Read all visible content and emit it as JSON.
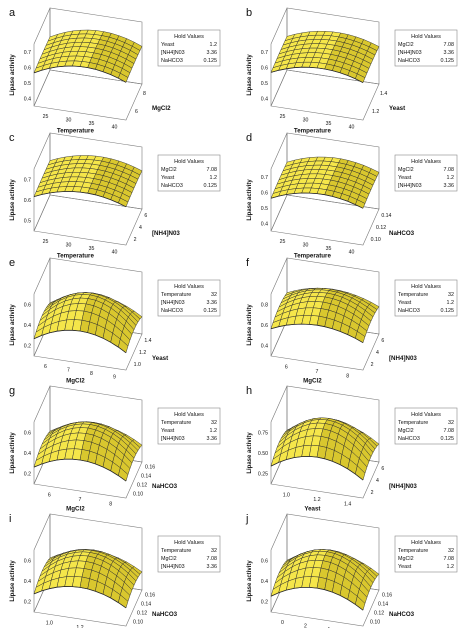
{
  "chart_data": [
    {
      "panel_letter": "a",
      "type": "surface3d",
      "xlabel": "Temperature",
      "ylabel": "MgCl2",
      "zlabel": "Lipase activity",
      "x_ticks": [
        "25",
        "30",
        "35",
        "40"
      ],
      "y_ticks": [
        "6",
        "8"
      ],
      "z_ticks": [
        "0.4",
        "0.5",
        "0.6",
        "0.7"
      ],
      "hold_title": "Hold Values",
      "hold": [
        [
          "Yeast",
          "1.2"
        ],
        [
          "[NH4]N03",
          "3.36"
        ],
        [
          "NaHCO3",
          "0.125"
        ]
      ],
      "surface": {
        "shape": "ridge_x",
        "peak": 0.72,
        "low": 0.42
      }
    },
    {
      "panel_letter": "b",
      "type": "surface3d",
      "xlabel": "Temperature",
      "ylabel": "Yeast",
      "zlabel": "Lipase activity",
      "x_ticks": [
        "25",
        "30",
        "35",
        "40"
      ],
      "y_ticks": [
        "1.2",
        "1.4"
      ],
      "z_ticks": [
        "0.4",
        "0.5",
        "0.6",
        "0.7"
      ],
      "hold_title": "Hold Values",
      "hold": [
        [
          "MgCl2",
          "7.08"
        ],
        [
          "[NH4]N03",
          "3.36"
        ],
        [
          "NaHCO3",
          "0.125"
        ]
      ],
      "surface": {
        "shape": "ridge_x",
        "peak": 0.7,
        "low": 0.44
      }
    },
    {
      "panel_letter": "c",
      "type": "surface3d",
      "xlabel": "Temperature",
      "ylabel": "[NH4]N03",
      "zlabel": "Lipase activity",
      "x_ticks": [
        "25",
        "30",
        "35",
        "40"
      ],
      "y_ticks": [
        "2",
        "4",
        "6"
      ],
      "z_ticks": [
        "0.5",
        "0.6",
        "0.7"
      ],
      "hold_title": "Hold Values",
      "hold": [
        [
          "MgCl2",
          "7.08"
        ],
        [
          "Yeast",
          "1.2"
        ],
        [
          "NaHCO3",
          "0.125"
        ]
      ],
      "surface": {
        "shape": "ridge_x",
        "peak": 0.71,
        "low": 0.45
      }
    },
    {
      "panel_letter": "d",
      "type": "surface3d",
      "xlabel": "Temperature",
      "ylabel": "NaHCO3",
      "zlabel": "Lipase activity",
      "x_ticks": [
        "25",
        "30",
        "35",
        "40"
      ],
      "y_ticks": [
        "0.10",
        "0.12",
        "0.14"
      ],
      "z_ticks": [
        "0.4",
        "0.5",
        "0.6",
        "0.7"
      ],
      "hold_title": "Hold Values",
      "hold": [
        [
          "MgCl2",
          "7.08"
        ],
        [
          "Yeast",
          "1.2"
        ],
        [
          "[NH4]N03",
          "3.36"
        ]
      ],
      "surface": {
        "shape": "ridge_x",
        "peak": 0.69,
        "low": 0.43
      }
    },
    {
      "panel_letter": "e",
      "type": "surface3d",
      "xlabel": "MgCl2",
      "ylabel": "Yeast",
      "zlabel": "Lipase activity",
      "x_ticks": [
        "6",
        "7",
        "8",
        "9"
      ],
      "y_ticks": [
        "1.0",
        "1.2",
        "1.4"
      ],
      "z_ticks": [
        "0.2",
        "0.4",
        "0.6"
      ],
      "hold_title": "Hold Values",
      "hold": [
        [
          "Temperature",
          "32"
        ],
        [
          "[NH4]N03",
          "3.36"
        ],
        [
          "NaHCO3",
          "0.125"
        ]
      ],
      "surface": {
        "shape": "dome",
        "peak": 0.7,
        "low": 0.22
      }
    },
    {
      "panel_letter": "f",
      "type": "surface3d",
      "xlabel": "MgCl2",
      "ylabel": "[NH4]N03",
      "zlabel": "Lipase activity",
      "x_ticks": [
        "6",
        "7",
        "8"
      ],
      "y_ticks": [
        "2",
        "4",
        "6"
      ],
      "z_ticks": [
        "0.4",
        "0.6",
        "0.8"
      ],
      "hold_title": "Hold Values",
      "hold": [
        [
          "Temperature",
          "32"
        ],
        [
          "Yeast",
          "1.2"
        ],
        [
          "NaHCO3",
          "0.125"
        ]
      ],
      "surface": {
        "shape": "dome",
        "peak": 0.72,
        "low": 0.38
      }
    },
    {
      "panel_letter": "g",
      "type": "surface3d",
      "xlabel": "MgCl2",
      "ylabel": "NaHCO3",
      "zlabel": "Lipase activity",
      "x_ticks": [
        "6",
        "7",
        "8"
      ],
      "y_ticks": [
        "0.10",
        "0.12",
        "0.14",
        "0.16"
      ],
      "z_ticks": [
        "0.2",
        "0.4",
        "0.6"
      ],
      "hold_title": "Hold Values",
      "hold": [
        [
          "Temperature",
          "32"
        ],
        [
          "Yeast",
          "1.2"
        ],
        [
          "[NH4]N03",
          "3.36"
        ]
      ],
      "surface": {
        "shape": "dome",
        "peak": 0.68,
        "low": 0.22
      }
    },
    {
      "panel_letter": "h",
      "type": "surface3d",
      "xlabel": "Yeast",
      "ylabel": "[NH4]N03",
      "zlabel": "Lipase activity",
      "x_ticks": [
        "1.0",
        "1.2",
        "1.4"
      ],
      "y_ticks": [
        "2",
        "4",
        "6"
      ],
      "z_ticks": [
        "0.25",
        "0.50",
        "0.75"
      ],
      "hold_title": "Hold Values",
      "hold": [
        [
          "Temperature",
          "32"
        ],
        [
          "MgCl2",
          "7.08"
        ],
        [
          "NaHCO3",
          "0.125"
        ]
      ],
      "surface": {
        "shape": "dome",
        "peak": 0.74,
        "low": 0.22
      }
    },
    {
      "panel_letter": "i",
      "type": "surface3d",
      "xlabel": "Yeast",
      "ylabel": "NaHCO3",
      "zlabel": "Lipase activity",
      "x_ticks": [
        "1.0",
        "1.2",
        "1.4"
      ],
      "y_ticks": [
        "0.10",
        "0.12",
        "0.14",
        "0.16"
      ],
      "z_ticks": [
        "0.2",
        "0.4",
        "0.6"
      ],
      "hold_title": "Hold Values",
      "hold": [
        [
          "Temperature",
          "32"
        ],
        [
          "MgCl2",
          "7.08"
        ],
        [
          "[NH4]N03",
          "3.36"
        ]
      ],
      "surface": {
        "shape": "dome",
        "peak": 0.68,
        "low": 0.24
      }
    },
    {
      "panel_letter": "j",
      "type": "surface3d",
      "xlabel": "[NH4]N03",
      "ylabel": "NaHCO3",
      "zlabel": "Lipase activity",
      "x_ticks": [
        "0",
        "2",
        "4",
        "6"
      ],
      "y_ticks": [
        "0.10",
        "0.12",
        "0.14",
        "0.16"
      ],
      "z_ticks": [
        "0.2",
        "0.4",
        "0.6"
      ],
      "hold_title": "Hold Values",
      "hold": [
        [
          "Temperature",
          "32"
        ],
        [
          "MgCl2",
          "7.08"
        ],
        [
          "Yeast",
          "1.2"
        ]
      ],
      "surface": {
        "shape": "dome",
        "peak": 0.69,
        "low": 0.2
      }
    }
  ],
  "colors": {
    "surface": "#f5e64a",
    "surface_dark": "#d9c72e",
    "mesh": "#2a2a2a",
    "box": "#7a7a7a",
    "text": "#111111"
  }
}
